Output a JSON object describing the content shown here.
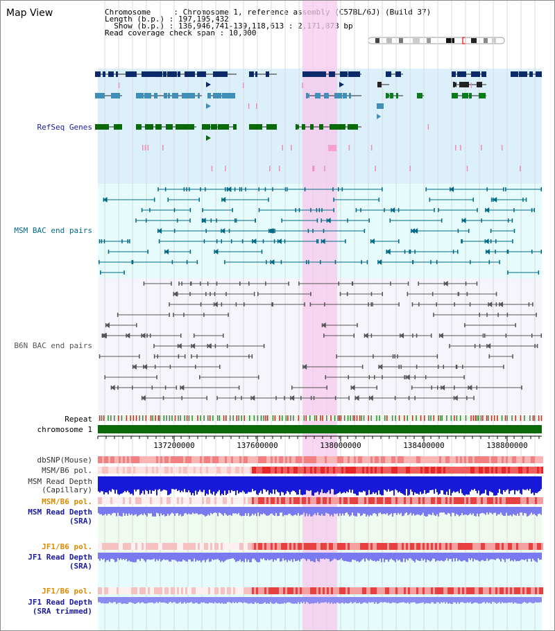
{
  "view_title": "Map View",
  "header": {
    "lines": [
      "Chromosome     : Chromosome 1, reference assembly (C57BL/6J) (Build 37)",
      "Length (b.p.) : 197,195,432",
      "  Show (b.p.) : 136,946,741-139,118,613 : 2,171,873 bp",
      "Read coverage check span : 10,000"
    ]
  },
  "tracks": {
    "refseq": "RefSeq Genes",
    "msm_bac": "MSM BAC end pairs",
    "b6n_bac": "B6N BAC end pairs",
    "repeat": "Repeat",
    "chromosome": "chromosome 1",
    "dbsnp": "dbSNP(Mouse)",
    "msm_pol": "MSM/B6 pol.",
    "msm_depth_cap": "MSM Read Depth\n(Capillary)",
    "msm_pol2": "MSM/B6 pol.",
    "msm_depth_sra": "MSM Read Depth\n(SRA)",
    "jf1_pol": "JF1/B6 pol.",
    "jf1_depth_sra": "JF1 Read Depth\n(SRA)",
    "jf1_pol2": "JF1/B6 pol.",
    "jf1_depth_trim": "JF1 Read Depth\n(SRA trimmed)"
  },
  "axis": {
    "ticks": [
      "137200000",
      "137600000",
      "138000000",
      "138400000",
      "138800000"
    ]
  },
  "colors": {
    "refseq_label": "#1a1aa0",
    "msm_label": "#006a86",
    "b6n_label": "#555555",
    "pol_orange": "#d98a00",
    "depth_blue": "#1a1ad0",
    "highlight": "#f7c8ec"
  }
}
